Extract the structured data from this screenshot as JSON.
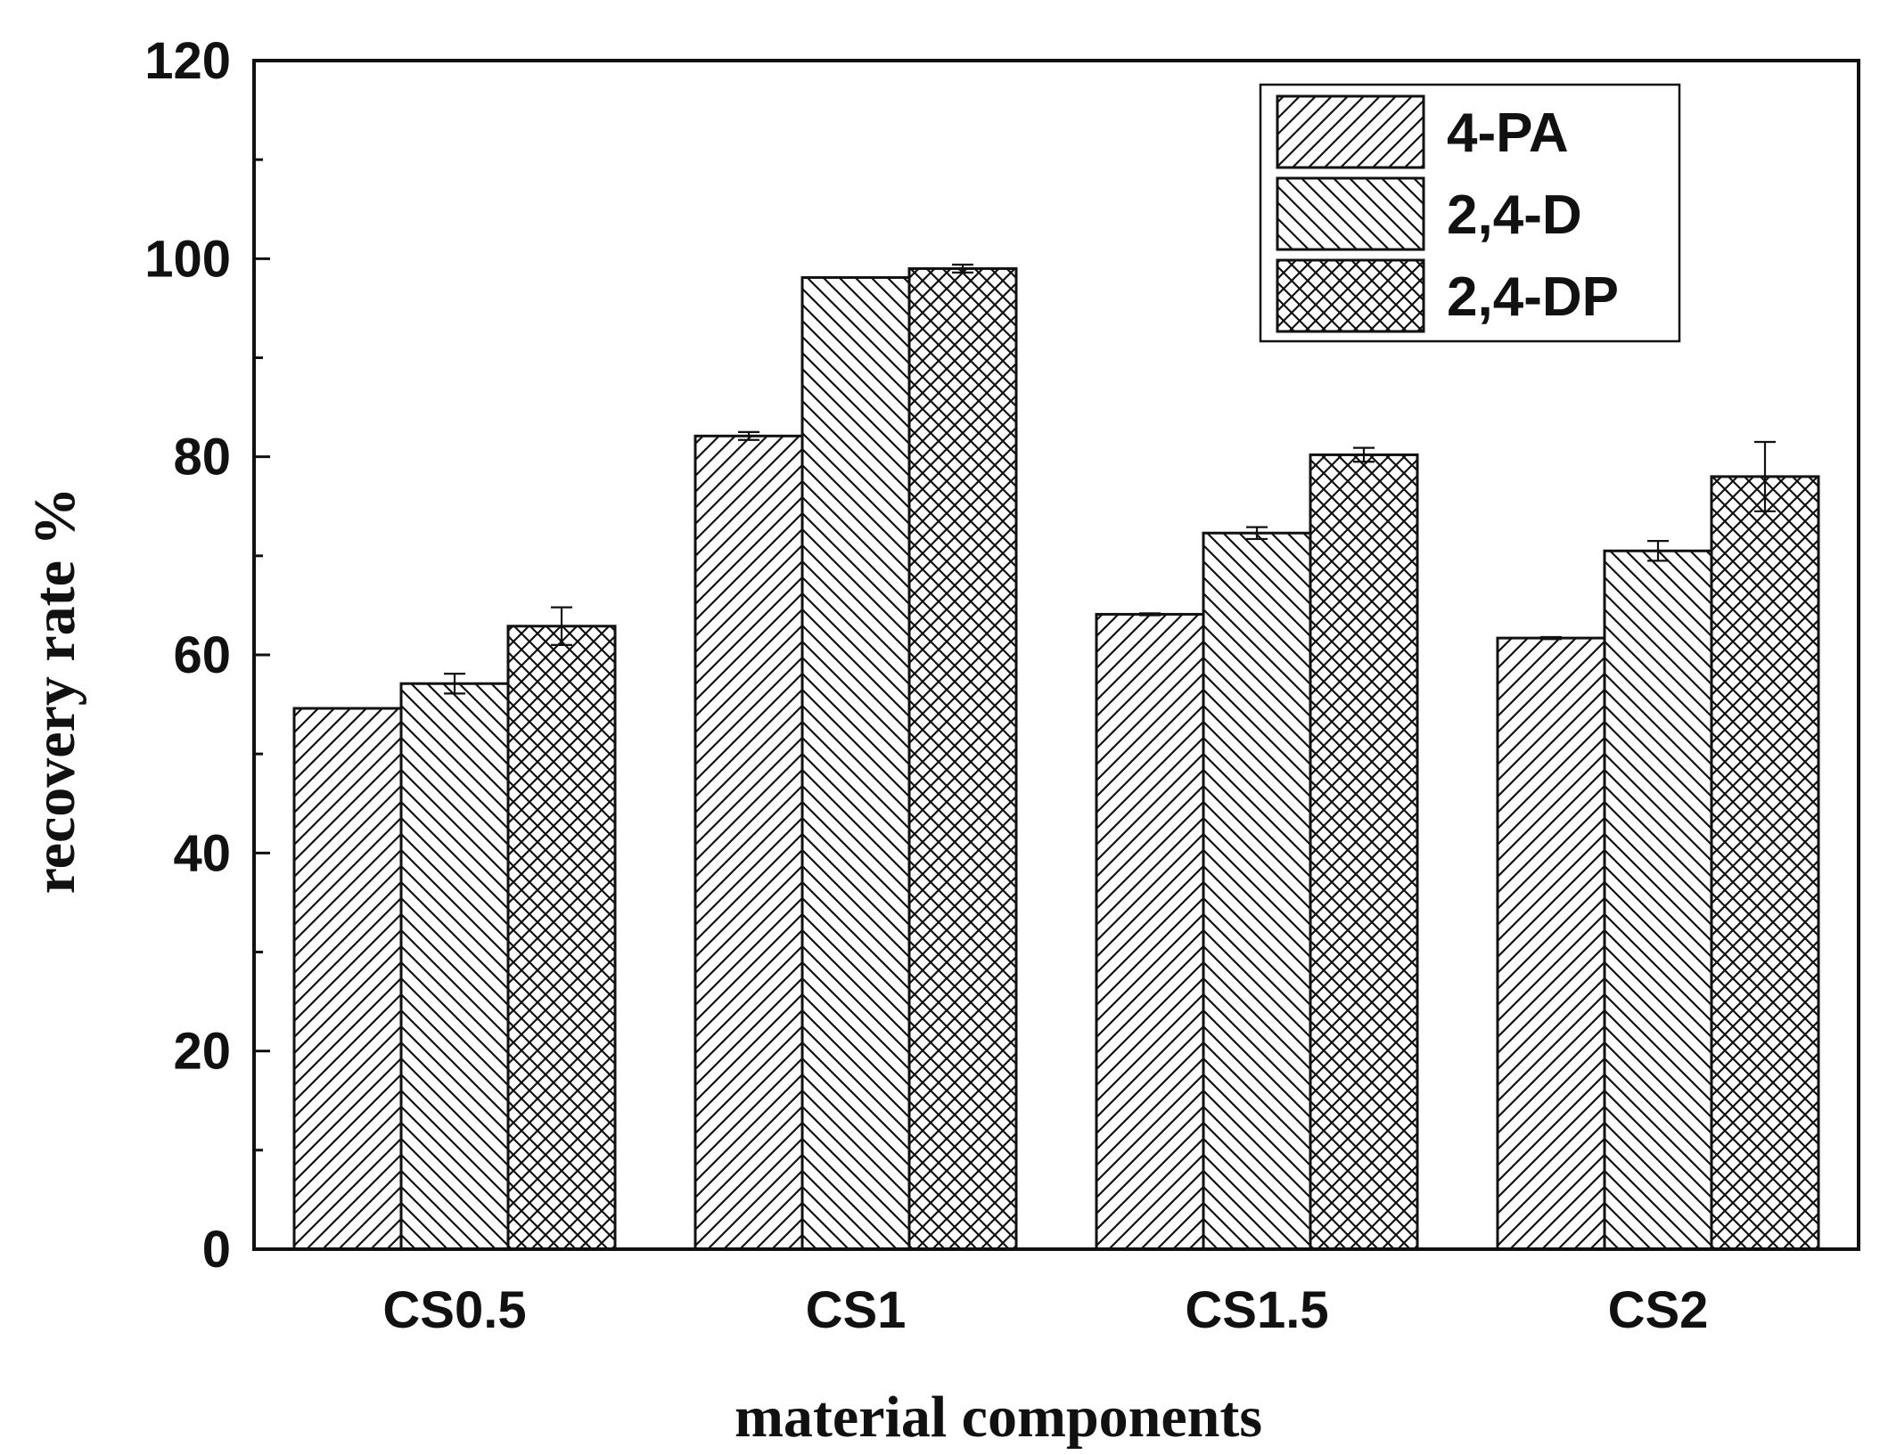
{
  "chart_data": {
    "type": "bar",
    "title": "",
    "xlabel": "material components",
    "ylabel": "recovery rate %",
    "ylim": [
      0,
      120
    ],
    "yticks": [
      0,
      20,
      40,
      60,
      80,
      100,
      120
    ],
    "categories": [
      "CS0.5",
      "CS1",
      "CS1.5",
      "CS2"
    ],
    "legend_position": "top-right",
    "series": [
      {
        "name": "4-PA",
        "pattern": "diagonal-up",
        "values": [
          54.6,
          82.1,
          64.1,
          61.7
        ],
        "errors": [
          0.0,
          0.4,
          0.1,
          0.1
        ]
      },
      {
        "name": "2,4-D",
        "pattern": "diagonal-down",
        "values": [
          57.1,
          98.1,
          72.3,
          70.5
        ],
        "errors": [
          1.0,
          0.0,
          0.6,
          1.0
        ]
      },
      {
        "name": "2,4-DP",
        "pattern": "crosshatch",
        "values": [
          62.9,
          99.0,
          80.2,
          78.0
        ],
        "errors": [
          1.9,
          0.4,
          0.7,
          3.5
        ]
      }
    ]
  }
}
